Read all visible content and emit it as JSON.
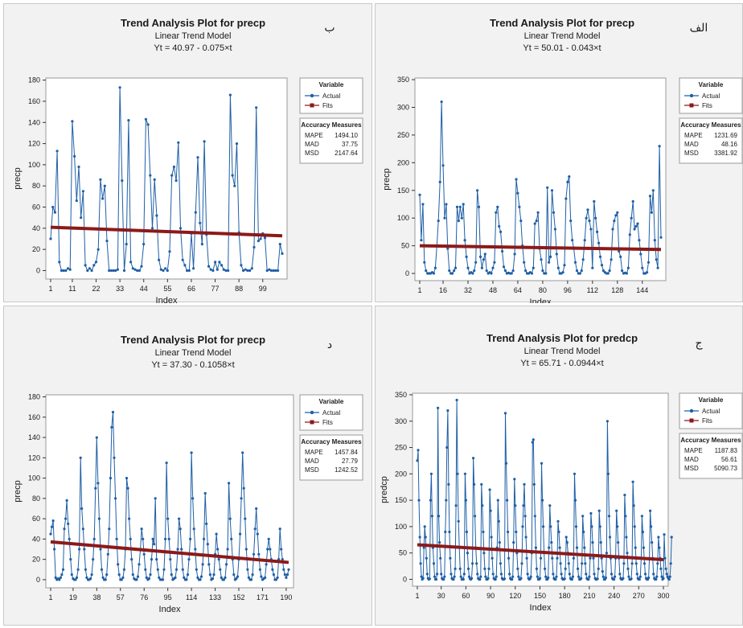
{
  "accent": {
    "actual": "#1f5fa6",
    "fits": "#8b1a1a",
    "panel_bg": "#f2f2f2",
    "plot_bg": "#ffffff"
  },
  "legend_labels": {
    "variable": "Variable",
    "actual": "Actual",
    "fits": "Fits",
    "accuracy": "Accuracy Measures",
    "mape": "MAPE",
    "mad": "MAD",
    "msd": "MSD"
  },
  "chart_data": [
    {
      "type": "line",
      "tag": "ب",
      "title": "Trend Analysis Plot for precp",
      "subtitle": "Linear Trend Model",
      "equation": "Yt = 40.97 - 0.075×t",
      "xlabel": "Index",
      "ylabel": "precp",
      "n": 108,
      "xlim": [
        1,
        108
      ],
      "ylim": [
        -8,
        182
      ],
      "xticks": [
        1,
        11,
        22,
        33,
        44,
        55,
        66,
        77,
        88,
        99
      ],
      "yticks": [
        0,
        20,
        40,
        60,
        80,
        100,
        120,
        140,
        160,
        180
      ],
      "fit": {
        "intercept": 40.97,
        "slope": -0.075
      },
      "accuracy": {
        "mape": "1494.10",
        "mad": "37.75",
        "msd": "2147.64"
      },
      "legend_position": "right",
      "series": [
        {
          "name": "Actual",
          "values": [
            30,
            60,
            55,
            113,
            8,
            0,
            0,
            0,
            2,
            1,
            141,
            108,
            66,
            98,
            50,
            75,
            5,
            0,
            2,
            0,
            5,
            8,
            20,
            86,
            68,
            80,
            28,
            0,
            0,
            0,
            0,
            1,
            173,
            85,
            0,
            25,
            142,
            8,
            2,
            1,
            0,
            0,
            4,
            25,
            143,
            138,
            90,
            40,
            86,
            52,
            10,
            1,
            0,
            2,
            0,
            18,
            90,
            98,
            85,
            121,
            40,
            10,
            5,
            0,
            0,
            35,
            2,
            55,
            107,
            45,
            25,
            122,
            34,
            4,
            1,
            0,
            8,
            1,
            8,
            5,
            1,
            0,
            0,
            166,
            90,
            80,
            120,
            36,
            5,
            0,
            1,
            0,
            0,
            2,
            22,
            154,
            28,
            30,
            35,
            31,
            0,
            1,
            0,
            0,
            0,
            0,
            25,
            16
          ]
        },
        {
          "name": "Fits"
        }
      ]
    },
    {
      "type": "line",
      "tag": "الف",
      "title": "Trend Analysis Plot for precp",
      "subtitle": "Linear Trend Model",
      "equation": "Yt = 50.01 - 0.043×t",
      "xlabel": "Index",
      "ylabel": "precp",
      "n": 156,
      "xlim": [
        1,
        156
      ],
      "ylim": [
        -13,
        353
      ],
      "xticks": [
        1,
        16,
        32,
        48,
        64,
        80,
        96,
        112,
        128,
        144
      ],
      "yticks": [
        0,
        50,
        100,
        150,
        200,
        250,
        300,
        350
      ],
      "fit": {
        "intercept": 50.01,
        "slope": -0.043
      },
      "accuracy": {
        "mape": "1231.69",
        "mad": "48.16",
        "msd": "3381.92"
      },
      "legend_position": "right",
      "series": [
        {
          "name": "Actual",
          "values": [
            142,
            60,
            125,
            20,
            5,
            0,
            0,
            0,
            2,
            0,
            10,
            50,
            95,
            165,
            310,
            195,
            100,
            125,
            45,
            5,
            0,
            0,
            5,
            10,
            120,
            95,
            120,
            100,
            125,
            60,
            30,
            10,
            0,
            2,
            0,
            5,
            20,
            150,
            120,
            30,
            10,
            25,
            35,
            5,
            0,
            2,
            0,
            10,
            20,
            110,
            120,
            85,
            75,
            40,
            12,
            5,
            0,
            1,
            0,
            0,
            5,
            35,
            170,
            145,
            120,
            95,
            50,
            20,
            5,
            0,
            0,
            2,
            0,
            10,
            90,
            95,
            110,
            45,
            25,
            5,
            0,
            0,
            155,
            20,
            30,
            150,
            110,
            80,
            35,
            10,
            0,
            0,
            2,
            15,
            135,
            165,
            175,
            95,
            60,
            45,
            20,
            5,
            0,
            0,
            5,
            25,
            60,
            100,
            115,
            95,
            80,
            10,
            130,
            100,
            75,
            55,
            30,
            15,
            5,
            2,
            0,
            0,
            5,
            25,
            80,
            95,
            105,
            110,
            40,
            30,
            5,
            0,
            1,
            0,
            10,
            70,
            100,
            130,
            80,
            85,
            90,
            60,
            35,
            10,
            0,
            0,
            2,
            20,
            140,
            110,
            150,
            60,
            25,
            10,
            230,
            65
          ]
        },
        {
          "name": "Fits"
        }
      ]
    },
    {
      "type": "line",
      "tag": "د",
      "title": "Trend Analysis Plot for precp",
      "subtitle": "Linear Trend Model",
      "equation": "Yt = 37.30 - 0.1058×t",
      "xlabel": "Index",
      "ylabel": "precp",
      "n": 192,
      "xlim": [
        1,
        192
      ],
      "ylim": [
        -8,
        182
      ],
      "xticks": [
        1,
        19,
        38,
        57,
        76,
        95,
        114,
        133,
        152,
        171,
        190
      ],
      "yticks": [
        0,
        20,
        40,
        60,
        80,
        100,
        120,
        140,
        160,
        180
      ],
      "fit": {
        "intercept": 37.3,
        "slope": -0.1058
      },
      "accuracy": {
        "mape": "1457.84",
        "mad": "27.79",
        "msd": "1242.52"
      },
      "legend_position": "right",
      "series": [
        {
          "name": "Actual",
          "values": [
            45,
            52,
            58,
            30,
            2,
            0,
            1,
            0,
            2,
            5,
            10,
            50,
            60,
            78,
            55,
            40,
            20,
            5,
            1,
            0,
            0,
            2,
            10,
            30,
            120,
            70,
            50,
            30,
            10,
            2,
            0,
            0,
            1,
            5,
            20,
            40,
            90,
            140,
            95,
            60,
            30,
            10,
            2,
            0,
            0,
            5,
            25,
            50,
            100,
            150,
            165,
            120,
            80,
            40,
            15,
            5,
            0,
            0,
            2,
            10,
            30,
            100,
            90,
            60,
            40,
            20,
            5,
            1,
            0,
            0,
            3,
            15,
            30,
            50,
            40,
            25,
            10,
            2,
            0,
            1,
            5,
            20,
            40,
            35,
            80,
            20,
            10,
            2,
            0,
            0,
            0,
            10,
            40,
            115,
            60,
            40,
            20,
            5,
            0,
            1,
            2,
            10,
            30,
            60,
            50,
            30,
            10,
            2,
            0,
            0,
            5,
            20,
            40,
            125,
            80,
            50,
            30,
            10,
            2,
            0,
            0,
            3,
            15,
            40,
            85,
            55,
            35,
            15,
            5,
            0,
            1,
            5,
            25,
            45,
            30,
            20,
            10,
            2,
            0,
            0,
            2,
            15,
            30,
            95,
            60,
            40,
            20,
            5,
            0,
            1,
            3,
            20,
            45,
            80,
            125,
            90,
            60,
            30,
            10,
            2,
            0,
            0,
            5,
            25,
            50,
            70,
            45,
            25,
            10,
            3,
            0,
            1,
            2,
            15,
            30,
            40,
            30,
            20,
            10,
            5,
            0,
            0,
            2,
            20,
            50,
            30,
            20,
            10,
            5,
            2,
            5,
            10
          ]
        },
        {
          "name": "Fits"
        }
      ]
    },
    {
      "type": "line",
      "tag": "ج",
      "title": "Trend Analysis Plot for predcp",
      "subtitle": "Linear Trend Model",
      "equation": "Yt = 65.71 - 0.0944×t",
      "xlabel": "Index",
      "ylabel": "predcp",
      "n": 300,
      "xlim": [
        1,
        300
      ],
      "ylim": [
        -13,
        353
      ],
      "xticks": [
        1,
        30,
        60,
        90,
        120,
        150,
        180,
        210,
        240,
        270,
        300
      ],
      "yticks": [
        0,
        50,
        100,
        150,
        200,
        250,
        300,
        350
      ],
      "fit": {
        "intercept": 65.71,
        "slope": -0.0944
      },
      "accuracy": {
        "mape": "1187.83",
        "mad": "56.61",
        "msd": "5090.73"
      },
      "legend_position": "right",
      "series": [
        {
          "name": "Actual",
          "values": [
            225,
            245,
            150,
            80,
            30,
            5,
            0,
            2,
            60,
            100,
            80,
            40,
            10,
            2,
            0,
            1,
            150,
            200,
            120,
            60,
            30,
            5,
            0,
            0,
            10,
            325,
            120,
            70,
            40,
            10,
            2,
            0,
            0,
            5,
            90,
            150,
            250,
            320,
            180,
            90,
            40,
            10,
            2,
            0,
            0,
            5,
            20,
            140,
            340,
            200,
            110,
            60,
            20,
            5,
            0,
            1,
            0,
            10,
            200,
            150,
            90,
            50,
            20,
            5,
            1,
            0,
            2,
            30,
            230,
            180,
            120,
            60,
            30,
            10,
            2,
            0,
            0,
            5,
            180,
            140,
            90,
            50,
            20,
            5,
            0,
            0,
            2,
            20,
            170,
            130,
            80,
            40,
            10,
            2,
            0,
            0,
            5,
            60,
            150,
            110,
            70,
            30,
            10,
            2,
            0,
            0,
            1,
            315,
            220,
            150,
            90,
            40,
            10,
            2,
            0,
            0,
            5,
            70,
            190,
            140,
            90,
            50,
            20,
            5,
            0,
            0,
            2,
            30,
            100,
            140,
            180,
            120,
            80,
            40,
            10,
            2,
            0,
            1,
            5,
            50,
            260,
            265,
            180,
            120,
            60,
            20,
            5,
            0,
            0,
            2,
            40,
            220,
            150,
            100,
            50,
            20,
            5,
            0,
            0,
            3,
            60,
            140,
            100,
            70,
            40,
            10,
            2,
            0,
            0,
            5,
            40,
            110,
            90,
            60,
            30,
            10,
            2,
            0,
            0,
            1,
            20,
            80,
            70,
            50,
            30,
            10,
            2,
            0,
            0,
            5,
            40,
            200,
            150,
            100,
            60,
            20,
            5,
            0,
            0,
            2,
            30,
            120,
            90,
            60,
            30,
            10,
            2,
            0,
            0,
            5,
            40,
            125,
            100,
            70,
            40,
            10,
            2,
            0,
            0,
            1,
            20,
            130,
            100,
            70,
            40,
            15,
            5,
            0,
            0,
            3,
            50,
            300,
            200,
            120,
            80,
            40,
            10,
            2,
            0,
            0,
            5,
            40,
            130,
            100,
            70,
            40,
            10,
            2,
            0,
            0,
            2,
            30,
            160,
            120,
            80,
            50,
            20,
            5,
            0,
            0,
            1,
            30,
            185,
            140,
            100,
            60,
            30,
            10,
            2,
            0,
            0,
            5,
            40,
            120,
            90,
            60,
            30,
            10,
            2,
            0,
            0,
            3,
            40,
            130,
            100,
            70,
            40,
            10,
            2,
            0,
            0,
            5,
            30,
            80,
            60,
            40,
            20,
            5,
            0,
            2,
            85,
            40,
            20,
            10,
            5,
            2,
            0,
            5,
            30,
            80
          ]
        },
        {
          "name": "Fits"
        }
      ]
    }
  ]
}
